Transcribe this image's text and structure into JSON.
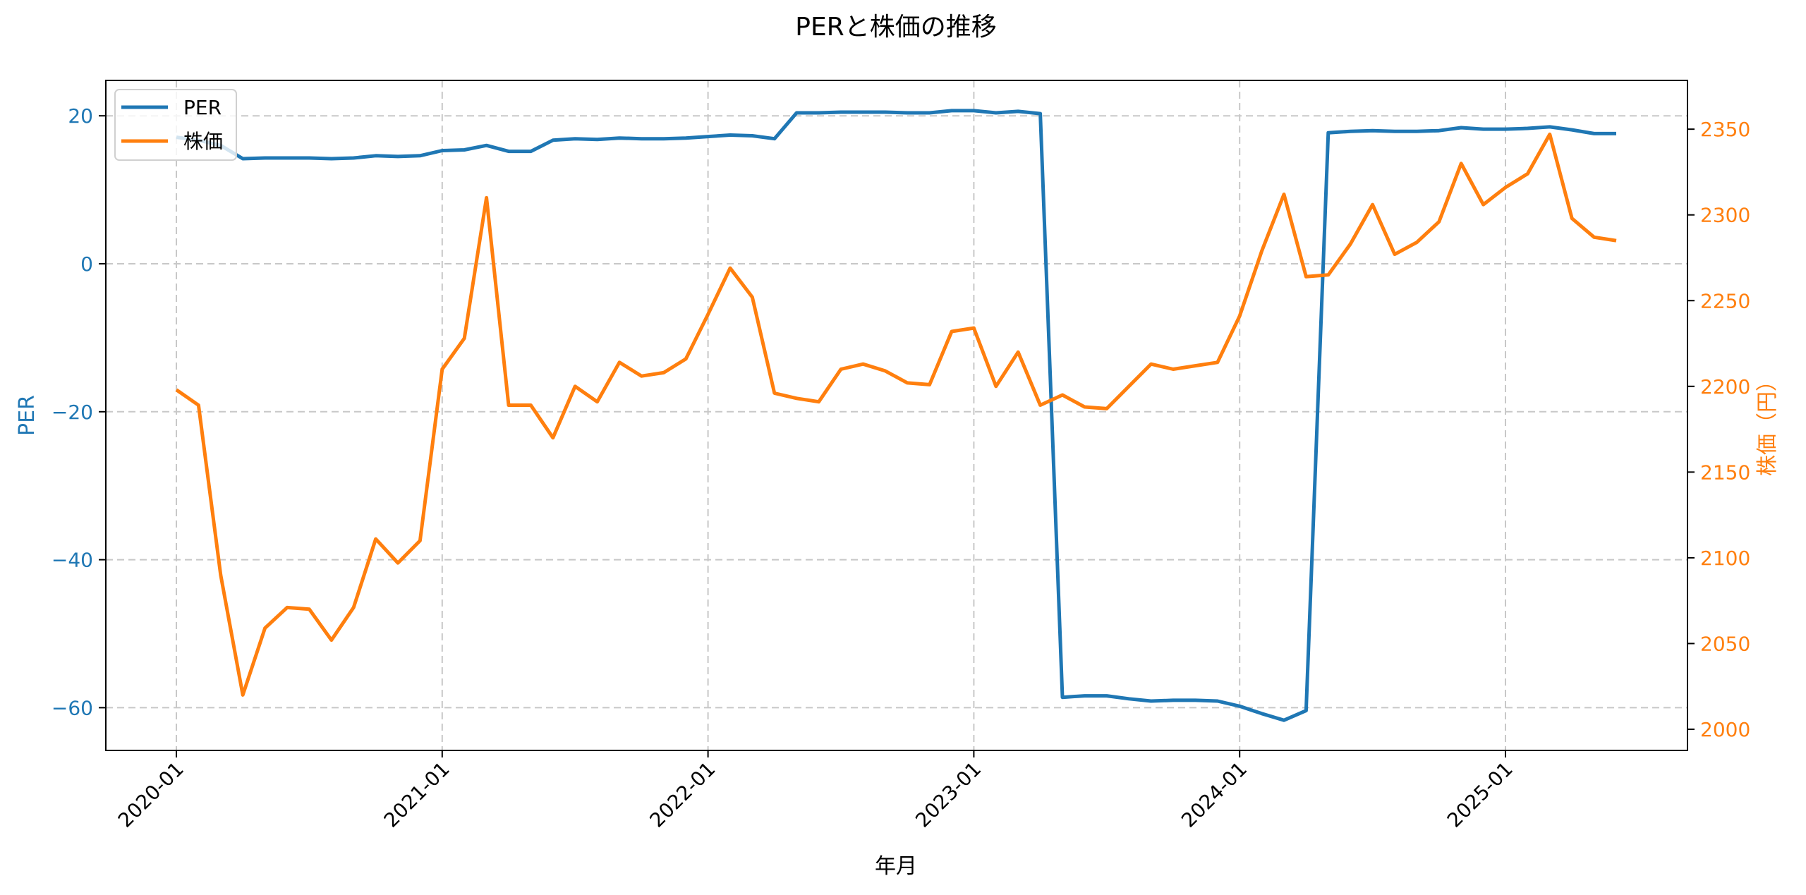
{
  "chart_data": {
    "type": "line",
    "title": "PERと株価の推移",
    "xlabel": "年月",
    "ylabel_left": "PER",
    "ylabel_right": "株価（円）",
    "grid": true,
    "legend_position": "upper left",
    "x_tick_labels": [
      "2020-01",
      "2021-01",
      "2022-01",
      "2023-01",
      "2024-01",
      "2025-01"
    ],
    "y_left_ticks": [
      20,
      0,
      -20,
      -40,
      -60
    ],
    "y_right_ticks": [
      2350,
      2300,
      2250,
      2200,
      2150,
      2100,
      2050,
      2000
    ],
    "y_left_range": [
      -65.5,
      25.5
    ],
    "y_right_range": [
      1988,
      2378
    ],
    "colors": {
      "PER": "#1f77b4",
      "株価": "#ff7f0e"
    },
    "x": [
      "2020-01",
      "2020-02",
      "2020-03",
      "2020-04",
      "2020-05",
      "2020-06",
      "2020-07",
      "2020-08",
      "2020-09",
      "2020-10",
      "2020-11",
      "2020-12",
      "2021-01",
      "2021-02",
      "2021-03",
      "2021-04",
      "2021-05",
      "2021-06",
      "2021-07",
      "2021-08",
      "2021-09",
      "2021-10",
      "2021-11",
      "2021-12",
      "2022-01",
      "2022-02",
      "2022-03",
      "2022-04",
      "2022-05",
      "2022-06",
      "2022-07",
      "2022-08",
      "2022-09",
      "2022-10",
      "2022-11",
      "2022-12",
      "2023-01",
      "2023-02",
      "2023-03",
      "2023-04",
      "2023-05",
      "2023-06",
      "2023-07",
      "2023-08",
      "2023-09",
      "2023-10",
      "2023-11",
      "2023-12",
      "2024-01",
      "2024-02",
      "2024-03",
      "2024-04",
      "2024-05",
      "2024-06",
      "2024-07",
      "2024-08",
      "2024-09",
      "2024-10",
      "2024-11",
      "2024-12",
      "2025-01",
      "2025-02",
      "2025-03",
      "2025-04",
      "2025-05",
      "2025-06"
    ],
    "series": [
      {
        "name": "PER",
        "axis": "left",
        "values": [
          17.1,
          16.7,
          16.0,
          14.2,
          14.3,
          14.3,
          14.3,
          14.2,
          14.3,
          14.6,
          14.5,
          14.6,
          15.3,
          15.4,
          16.0,
          15.2,
          15.2,
          16.7,
          16.9,
          16.8,
          17.0,
          16.9,
          16.9,
          17.0,
          17.2,
          17.4,
          17.3,
          16.9,
          20.4,
          20.4,
          20.5,
          20.5,
          20.5,
          20.4,
          20.4,
          20.7,
          20.7,
          20.4,
          20.6,
          20.3,
          -58.6,
          -58.4,
          -58.4,
          -58.8,
          -59.1,
          -59.0,
          -59.0,
          -59.1,
          -59.8,
          -60.8,
          -61.7,
          -60.4,
          17.7,
          17.9,
          18.0,
          17.9,
          17.9,
          18.0,
          18.4,
          18.2,
          18.2,
          18.3,
          18.5,
          18.1,
          17.6,
          17.6
        ]
      },
      {
        "name": "株価",
        "axis": "right",
        "values": [
          2198,
          2189,
          2090,
          2020,
          2059,
          2071,
          2070,
          2052,
          2071,
          2111,
          2097,
          2110,
          2210,
          2228,
          2310,
          2189,
          2189,
          2170,
          2200,
          2191,
          2214,
          2206,
          2208,
          2216,
          2242,
          2269,
          2252,
          2196,
          2193,
          2191,
          2210,
          2213,
          2209,
          2202,
          2201,
          2232,
          2234,
          2200,
          2220,
          2189,
          2195,
          2188,
          2187,
          2200,
          2213,
          2210,
          2212,
          2214,
          2241,
          2279,
          2312,
          2264,
          2265,
          2283,
          2306,
          2277,
          2284,
          2296,
          2330,
          2306,
          2316,
          2324,
          2347,
          2298,
          2287,
          2285
        ]
      }
    ]
  },
  "legend": {
    "items": [
      {
        "label": "PER"
      },
      {
        "label": "株価"
      }
    ]
  }
}
